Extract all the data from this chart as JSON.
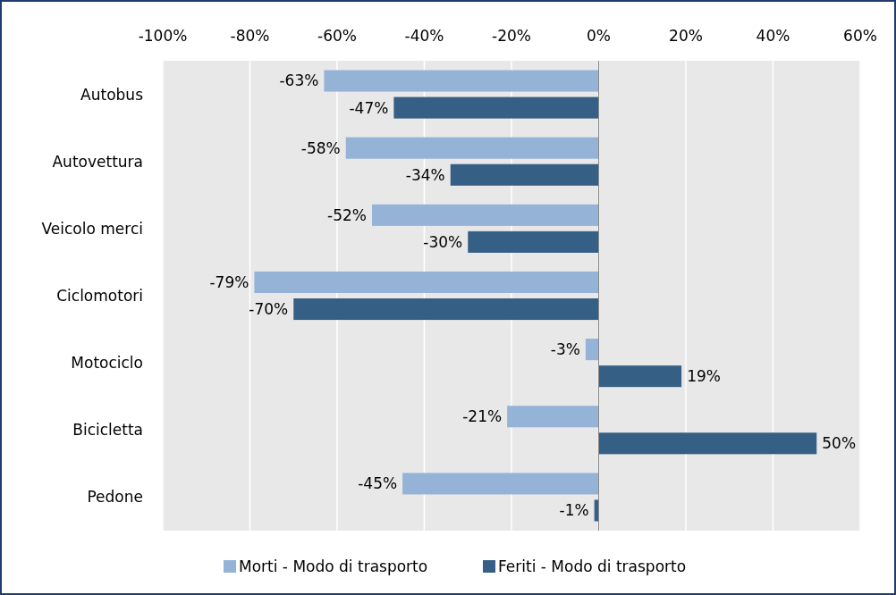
{
  "chart_data": {
    "type": "bar",
    "orientation": "horizontal",
    "categories": [
      "Autobus",
      "Autovettura",
      "Veicolo merci",
      "Ciclomotori",
      "Motociclo",
      "Bicicletta",
      "Pedone"
    ],
    "series": [
      {
        "name": "Morti - Modo di trasporto",
        "color": "#95b3d7",
        "values": [
          -63,
          -58,
          -52,
          -79,
          -3,
          -21,
          -45
        ]
      },
      {
        "name": "Feriti - Modo di trasporto",
        "color": "#365f85",
        "values": [
          -47,
          -34,
          -30,
          -70,
          19,
          50,
          -1
        ]
      }
    ],
    "xlim": [
      -100,
      60
    ],
    "xticks": [
      {
        "value": -100,
        "label": "-100%"
      },
      {
        "value": -80,
        "label": "-80%"
      },
      {
        "value": -60,
        "label": "-60%"
      },
      {
        "value": -40,
        "label": "-40%"
      },
      {
        "value": -20,
        "label": "-20%"
      },
      {
        "value": 0,
        "label": "0%"
      },
      {
        "value": 20,
        "label": "20%"
      },
      {
        "value": 40,
        "label": "40%"
      },
      {
        "value": 60,
        "label": "60%"
      }
    ],
    "value_labels": [
      [
        "-63%",
        "-58%",
        "-52%",
        "-79%",
        "-3%",
        "-21%",
        "-45%"
      ],
      [
        "-47%",
        "-34%",
        "-30%",
        "-70%",
        "19%",
        "50%",
        "-1%"
      ]
    ],
    "grid": "x",
    "legend": "bottom"
  }
}
